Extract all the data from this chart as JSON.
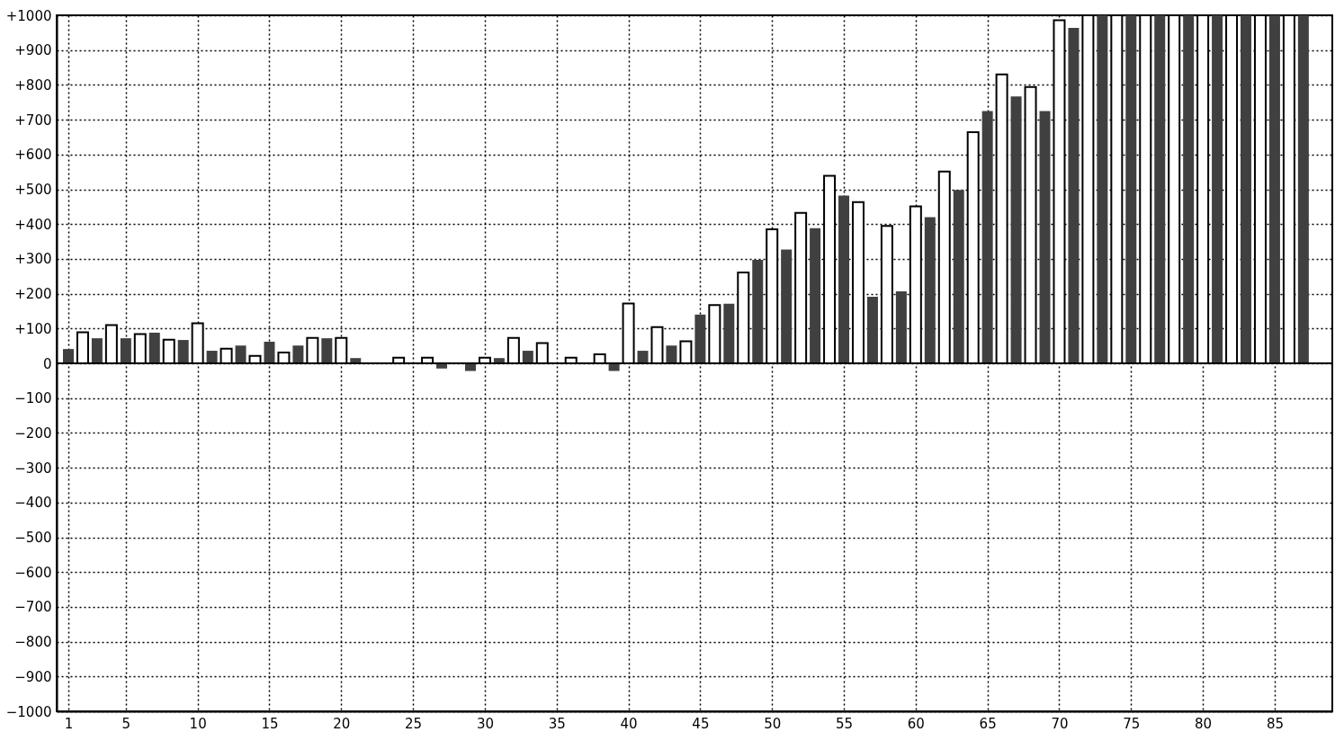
{
  "chart_data": {
    "type": "bar",
    "xlim": [
      0.5,
      88.7
    ],
    "xticks": [
      1,
      5,
      10,
      15,
      20,
      25,
      30,
      35,
      40,
      45,
      50,
      55,
      60,
      65,
      70,
      75,
      80,
      85
    ],
    "ylim": [
      -1000,
      1000
    ],
    "yticks": [
      {
        "value": -1000,
        "label": "−1000"
      },
      {
        "value": -900,
        "label": "−900"
      },
      {
        "value": -800,
        "label": "−800"
      },
      {
        "value": -700,
        "label": "−700"
      },
      {
        "value": -600,
        "label": "−600"
      },
      {
        "value": -500,
        "label": "−500"
      },
      {
        "value": -400,
        "label": "−400"
      },
      {
        "value": -300,
        "label": "−300"
      },
      {
        "value": -200,
        "label": "−200"
      },
      {
        "value": -100,
        "label": "−100"
      },
      0,
      {
        "value": 100,
        "label": "+100"
      },
      {
        "value": 200,
        "label": "+200"
      },
      {
        "value": 300,
        "label": "+300"
      },
      {
        "value": 400,
        "label": "+400"
      },
      {
        "value": 500,
        "label": "+500"
      },
      {
        "value": 600,
        "label": "+600"
      },
      {
        "value": 700,
        "label": "+700"
      },
      {
        "value": 800,
        "label": "+800"
      },
      {
        "value": 900,
        "label": "+900"
      },
      {
        "value": 1000,
        "label": "+1000"
      }
    ],
    "grid": true,
    "ref_lines": [
      {
        "axis": "y",
        "value": 0,
        "color": "#000000"
      }
    ],
    "series": [
      {
        "color": "#404040",
        "x": [
          1,
          3,
          5,
          7,
          9,
          11,
          13,
          15,
          17,
          19,
          21,
          23,
          25,
          27,
          29,
          31,
          33,
          35,
          37,
          39,
          41,
          43,
          45,
          47,
          49,
          51,
          53,
          55,
          57,
          59,
          61,
          63,
          65,
          67,
          69,
          71,
          73,
          75,
          77,
          79,
          81,
          83,
          85,
          87
        ],
        "values": [
          41,
          72,
          72,
          88,
          67,
          36,
          51,
          62,
          51,
          72,
          15,
          null,
          null,
          -15,
          -22,
          15,
          36,
          null,
          null,
          -22,
          36,
          51,
          140,
          171,
          297,
          327,
          388,
          482,
          191,
          207,
          420,
          498,
          725,
          767,
          725,
          964,
          1000,
          1000,
          1000,
          1000,
          1000,
          1000,
          1000,
          1000
        ]
      },
      {
        "color": "#ffffff",
        "x": [
          2,
          4,
          6,
          8,
          10,
          12,
          14,
          16,
          18,
          20,
          22,
          24,
          26,
          28,
          30,
          32,
          34,
          36,
          38,
          40,
          42,
          44,
          46,
          48,
          50,
          52,
          54,
          56,
          58,
          60,
          62,
          64,
          66,
          68,
          70,
          72,
          74,
          76,
          78,
          80,
          82,
          84,
          86
        ],
        "values": [
          89,
          110,
          84,
          68,
          115,
          42,
          21,
          31,
          73,
          73,
          null,
          16,
          16,
          null,
          16,
          73,
          58,
          16,
          26,
          172,
          104,
          63,
          167,
          261,
          385,
          432,
          539,
          463,
          395,
          451,
          551,
          664,
          830,
          794,
          986,
          1000,
          1000,
          1000,
          1000,
          1000,
          1000,
          1000,
          1000
        ]
      }
    ]
  }
}
